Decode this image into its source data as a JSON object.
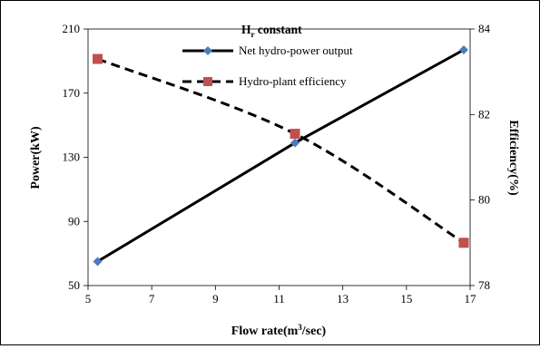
{
  "chart_data": {
    "type": "line",
    "title": "H",
    "title_subscript": "r",
    "title_suffix": " constant",
    "xlabel": "Flow rate(m",
    "xlabel_sup": "3",
    "xlabel_suffix": "/sec)",
    "ylabel_left": "Power(kW)",
    "ylabel_right": "Efficiency(%)",
    "xlim": [
      5,
      17
    ],
    "ylim_left": [
      50,
      210
    ],
    "ylim_right": [
      78,
      84
    ],
    "x_ticks": [
      5,
      7,
      9,
      11,
      13,
      15,
      17
    ],
    "y_ticks_left": [
      50,
      90,
      130,
      170,
      210
    ],
    "y_ticks_right": [
      78,
      80,
      82,
      84
    ],
    "grid": false,
    "legend_position": "top-center",
    "series": [
      {
        "name": "Net hydro-power output",
        "axis": "left",
        "style": "solid",
        "marker": "diamond",
        "marker_color": "#4a7ebb",
        "x": [
          5.3,
          11.5,
          16.8
        ],
        "y": [
          65,
          139,
          197
        ]
      },
      {
        "name": "Hydro-plant efficiency",
        "axis": "right",
        "style": "dashed",
        "marker": "square",
        "marker_color": "#c0504d",
        "x": [
          5.3,
          11.5,
          16.8
        ],
        "y": [
          83.3,
          81.55,
          79.0
        ]
      }
    ]
  }
}
